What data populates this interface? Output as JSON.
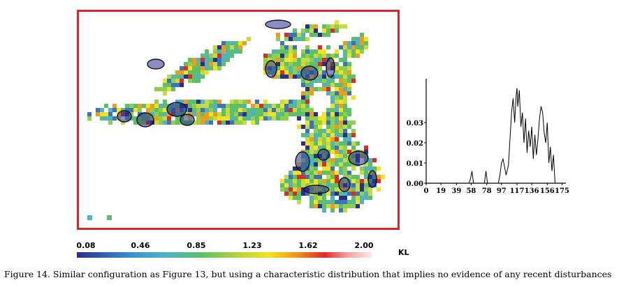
{
  "figure": {
    "caption": "Figure 14.   Similar configuration as Figure 13, but using a characteristic distribution that implies no evidence of any recent disturbances"
  },
  "colorbar": {
    "ticks": [
      "0.08",
      "0.46",
      "0.85",
      "1.23",
      "1.62",
      "2.00"
    ],
    "unit": "KL",
    "stops": [
      "#2a2f8f",
      "#3a8fd0",
      "#5cc06a",
      "#f2e41c",
      "#e02a22",
      "#ffe8e8"
    ]
  },
  "chart_data": {
    "type": "line",
    "xlabel": "",
    "ylabel": "",
    "x_ticks": [
      "0",
      "19",
      "39",
      "58",
      "78",
      "97",
      "117",
      "136",
      "156",
      "175"
    ],
    "y_ticks": [
      "0.00",
      "0.01",
      "0.02",
      "0.03"
    ],
    "xlim": [
      0,
      180
    ],
    "ylim": [
      0,
      0.05
    ],
    "x": [
      0,
      55,
      57,
      59,
      61,
      75,
      77,
      79,
      93,
      95,
      97,
      99,
      101,
      103,
      106,
      108,
      110,
      112,
      114,
      116,
      117,
      118,
      120,
      122,
      124,
      126,
      128,
      130,
      132,
      134,
      136,
      138,
      140,
      142,
      144,
      146,
      148,
      150,
      152,
      154,
      156,
      158,
      160,
      162,
      164,
      166,
      180
    ],
    "y": [
      0,
      0,
      0.002,
      0.006,
      0,
      0,
      0.006,
      0,
      0,
      0.004,
      0.01,
      0.012,
      0.008,
      0.004,
      0.009,
      0.022,
      0.035,
      0.042,
      0.03,
      0.044,
      0.047,
      0.038,
      0.046,
      0.028,
      0.035,
      0.02,
      0.032,
      0.015,
      0.026,
      0.018,
      0.028,
      0.012,
      0.024,
      0.014,
      0.022,
      0.032,
      0.038,
      0.035,
      0.025,
      0.02,
      0.03,
      0.01,
      0.018,
      0.006,
      0.014,
      0,
      0
    ]
  },
  "map": {
    "palette": [
      "#2a2f8f",
      "#3a73c4",
      "#4fb3c8",
      "#5cc06a",
      "#8fcf4a",
      "#c8da3c",
      "#f2e41c",
      "#f29a1a",
      "#e02a22"
    ],
    "outline_color": "#111111",
    "legend_swatches": [
      "#4fb3c8",
      "#5cc06a"
    ]
  }
}
